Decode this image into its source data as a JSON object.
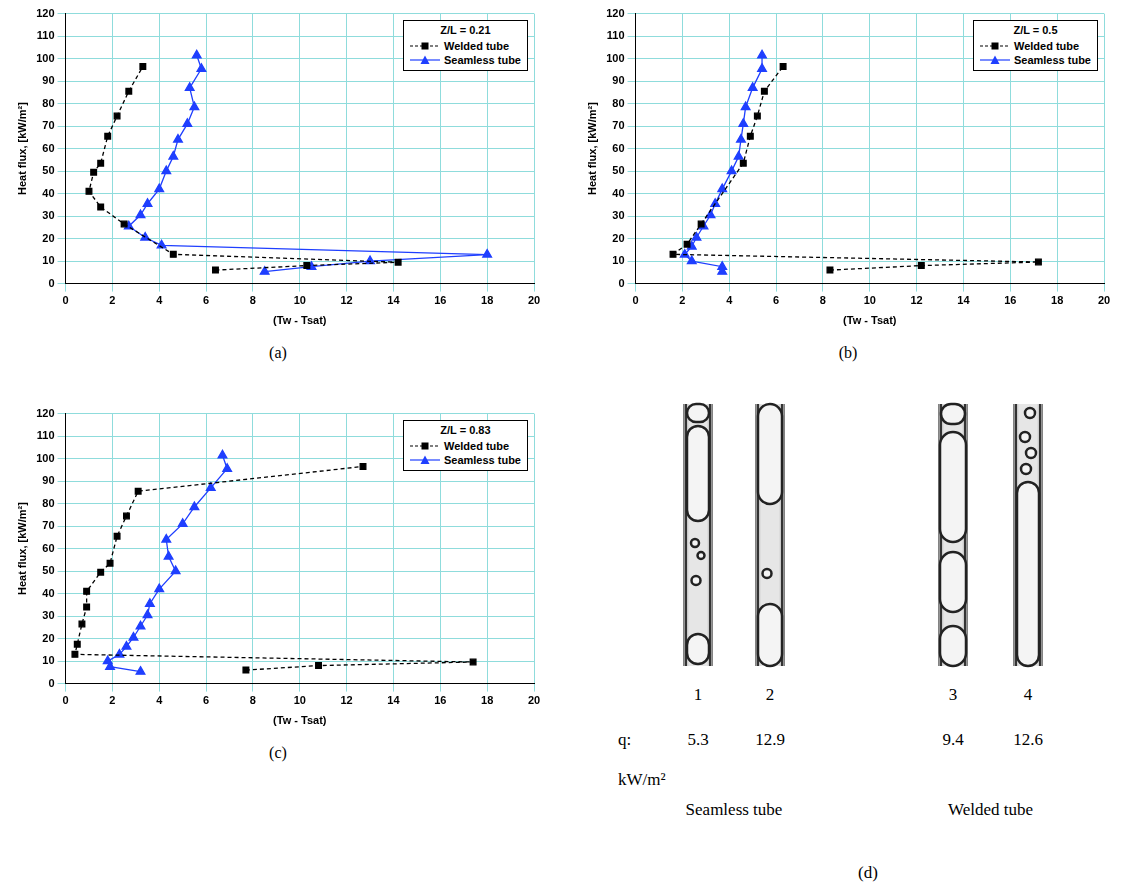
{
  "chart_data": [
    {
      "type": "line",
      "panel": "(a)",
      "title": "Z/L = 0.21",
      "x_label": "(Tw - Tsat)",
      "y_label": "Heat flux, [kW/m²]",
      "xlim": [
        0,
        20
      ],
      "xticks": [
        0,
        2,
        4,
        6,
        8,
        10,
        12,
        14,
        16,
        18,
        20
      ],
      "ylim": [
        0,
        120
      ],
      "yticks": [
        0,
        10,
        20,
        30,
        40,
        50,
        60,
        70,
        80,
        90,
        100,
        110,
        120
      ],
      "grid": true,
      "legend": "top-right",
      "series": [
        {
          "name": "Welded tube",
          "color": "#000000",
          "marker": "square",
          "line_style": "dashed",
          "x": [
            6.4,
            10.3,
            14.2,
            4.6,
            2.5,
            1.5,
            1.0,
            1.2,
            1.5,
            1.8,
            2.2,
            2.7,
            3.3
          ],
          "values": [
            6,
            8,
            9.5,
            13,
            26.5,
            34,
            41,
            49.5,
            53.5,
            65.5,
            74.5,
            85.5,
            96.5
          ]
        },
        {
          "name": "Seamless tube",
          "color": "#1f3fff",
          "marker": "triangle",
          "line_style": "solid",
          "x": [
            8.5,
            10.5,
            13.0,
            18.0,
            4.1,
            3.4,
            2.7,
            3.2,
            3.5,
            4.0,
            4.3,
            4.6,
            4.8,
            5.2,
            5.5,
            5.3,
            5.8,
            5.6
          ],
          "values": [
            5.3,
            7.5,
            10,
            12.9,
            17,
            20.5,
            25.5,
            30.5,
            35.5,
            42,
            50,
            56.5,
            64,
            71,
            78.5,
            87,
            95.5,
            101.5
          ]
        }
      ]
    },
    {
      "type": "line",
      "panel": "(b)",
      "title": "Z/L = 0.5",
      "x_label": "(Tw - Tsat)",
      "y_label": "Heat flux, [kW/m²]",
      "xlim": [
        0,
        20
      ],
      "xticks": [
        0,
        2,
        4,
        6,
        8,
        10,
        12,
        14,
        16,
        18,
        20
      ],
      "ylim": [
        0,
        120
      ],
      "yticks": [
        0,
        10,
        20,
        30,
        40,
        50,
        60,
        70,
        80,
        90,
        100,
        110,
        120
      ],
      "grid": true,
      "legend": "top-right",
      "series": [
        {
          "name": "Welded tube",
          "color": "#000000",
          "marker": "square",
          "line_style": "dashed",
          "x": [
            8.3,
            12.2,
            17.2,
            1.6,
            2.2,
            2.8,
            4.6,
            4.9,
            5.2,
            5.5,
            6.3
          ],
          "values": [
            6,
            8,
            9.6,
            13,
            17.5,
            26.5,
            53.5,
            65.5,
            74.5,
            85.5,
            96.5
          ]
        },
        {
          "name": "Seamless tube",
          "color": "#1f3fff",
          "marker": "triangle",
          "line_style": "solid",
          "x": [
            3.7,
            3.7,
            2.4,
            2.1,
            2.4,
            2.6,
            2.9,
            3.2,
            3.4,
            3.7,
            4.1,
            4.4,
            4.5,
            4.6,
            4.7,
            5.0,
            5.4,
            5.4
          ],
          "values": [
            5.3,
            7.5,
            10,
            12.9,
            16.5,
            20.5,
            25.5,
            30.5,
            35.5,
            42,
            50,
            56.5,
            64,
            71,
            78.5,
            87,
            95.5,
            101.5
          ]
        }
      ]
    },
    {
      "type": "line",
      "panel": "(c)",
      "title": "Z/L = 0.83",
      "x_label": "(Tw - Tsat)",
      "y_label": "Heat flux, [kW/m²]",
      "xlim": [
        0,
        20
      ],
      "xticks": [
        0,
        2,
        4,
        6,
        8,
        10,
        12,
        14,
        16,
        18,
        20
      ],
      "ylim": [
        0,
        120
      ],
      "yticks": [
        0,
        10,
        20,
        30,
        40,
        50,
        60,
        70,
        80,
        90,
        100,
        110,
        120
      ],
      "grid": true,
      "legend": "top-right",
      "series": [
        {
          "name": "Welded tube",
          "color": "#000000",
          "marker": "square",
          "line_style": "dashed",
          "x": [
            7.7,
            10.8,
            17.4,
            0.4,
            0.5,
            0.7,
            0.9,
            0.9,
            1.5,
            1.9,
            2.2,
            2.6,
            3.1,
            12.7
          ],
          "values": [
            6,
            8,
            9.6,
            13,
            17.5,
            26.5,
            34,
            41,
            49.5,
            53.5,
            65.5,
            74.5,
            85.5,
            96.5
          ]
        },
        {
          "name": "Seamless tube",
          "color": "#1f3fff",
          "marker": "triangle",
          "line_style": "solid",
          "x": [
            3.2,
            1.9,
            1.8,
            2.3,
            2.6,
            2.9,
            3.2,
            3.5,
            3.6,
            4.0,
            4.7,
            4.4,
            4.3,
            5.0,
            5.5,
            6.2,
            6.9,
            6.7
          ],
          "values": [
            5.3,
            7.5,
            10,
            12.9,
            16.5,
            20.5,
            25.5,
            30.5,
            35.5,
            42,
            50,
            56.5,
            64,
            71,
            78.5,
            87,
            95.5,
            101.5
          ]
        }
      ]
    }
  ],
  "figure_d": {
    "panel": "(d)",
    "q_label": "q:",
    "unit": "kW/m²",
    "images": [
      {
        "number": "1",
        "q": 5.3
      },
      {
        "number": "2",
        "q": 12.9
      },
      {
        "number": "3",
        "q": 9.4
      },
      {
        "number": "4",
        "q": 12.6
      }
    ],
    "groups": [
      {
        "name": "Seamless tube",
        "images": [
          "1",
          "2"
        ]
      },
      {
        "name": "Welded tube",
        "images": [
          "3",
          "4"
        ]
      }
    ]
  }
}
